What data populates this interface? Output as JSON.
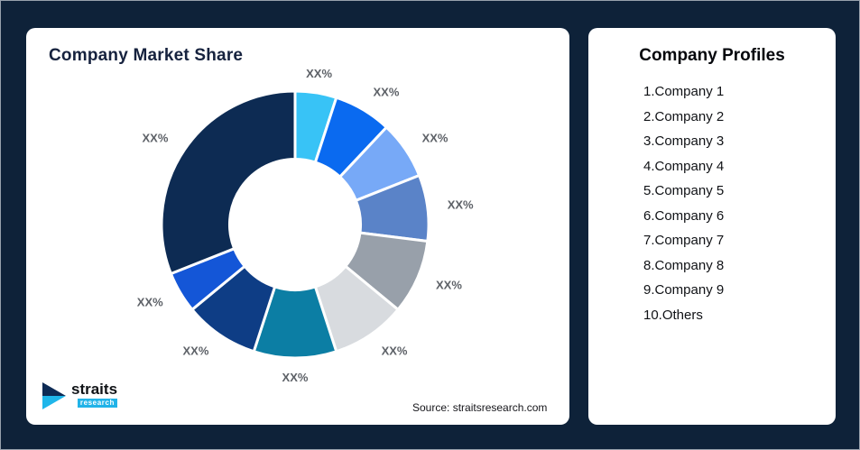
{
  "left_card": {
    "title": "Company Market Share",
    "source_text": "Source: straitsresearch.com",
    "logo": {
      "name": "straits",
      "subtitle": "research"
    }
  },
  "right_card": {
    "title": "Company Profiles",
    "items": [
      "1.Company 1",
      "2.Company 2",
      "3.Company 3",
      "4.Company 4",
      "5.Company 5",
      "6.Company 6",
      "7.Company 7",
      "8.Company 8",
      "9.Company 9",
      "10.Others"
    ]
  },
  "chart_data": {
    "type": "pie",
    "subtype": "donut",
    "title": "Company Market Share",
    "direction": "clockwise",
    "start_angle_deg": 0,
    "inner_radius_ratio": 0.49,
    "label_color": "#5d6167",
    "segments": [
      {
        "id": "segment-1",
        "label": "XX%",
        "value": 5,
        "color": "#38c3f6"
      },
      {
        "id": "segment-2",
        "label": "XX%",
        "value": 7,
        "color": "#0a6af0"
      },
      {
        "id": "segment-3",
        "label": "XX%",
        "value": 7,
        "color": "#77a9f7"
      },
      {
        "id": "segment-4",
        "label": "XX%",
        "value": 8,
        "color": "#5a83c8"
      },
      {
        "id": "segment-5",
        "label": "XX%",
        "value": 9,
        "color": "#98a0aa"
      },
      {
        "id": "segment-6",
        "label": "XX%",
        "value": 9,
        "color": "#d8dbdf"
      },
      {
        "id": "segment-7",
        "label": "XX%",
        "value": 10,
        "color": "#0c7ea4"
      },
      {
        "id": "segment-8",
        "label": "XX%",
        "value": 9,
        "color": "#0e3d85"
      },
      {
        "id": "segment-9",
        "label": "XX%",
        "value": 5,
        "color": "#1456d7"
      },
      {
        "id": "segment-10",
        "label": "XX%",
        "value": 31,
        "color": "#0d2b53"
      }
    ]
  }
}
